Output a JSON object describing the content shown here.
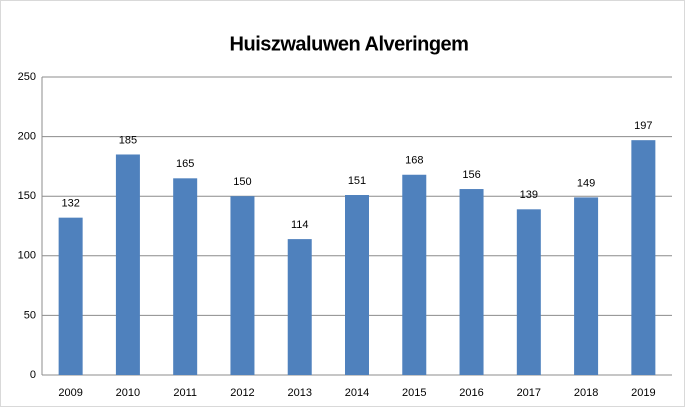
{
  "chart_data": {
    "type": "bar",
    "title": "Huiszwaluwen Alveringem",
    "categories": [
      "2009",
      "2010",
      "2011",
      "2012",
      "2013",
      "2014",
      "2015",
      "2016",
      "2017",
      "2018",
      "2019"
    ],
    "values": [
      132,
      185,
      165,
      150,
      114,
      151,
      168,
      156,
      139,
      149,
      197
    ],
    "color": "#4f81bd",
    "ylim": [
      0,
      250
    ],
    "yticks": [
      0,
      50,
      100,
      150,
      200,
      250
    ],
    "grid": true
  }
}
